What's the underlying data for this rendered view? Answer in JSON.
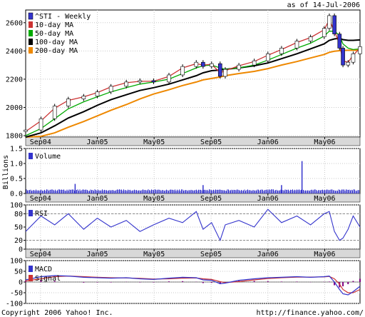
{
  "header": {
    "as_of": "as of 14-Jul-2006"
  },
  "footer": {
    "copyright": "Copyright 2006 Yahoo! Inc.",
    "url": "http://finance.yahoo.com/"
  },
  "colors": {
    "price_up": "#ffffff",
    "price_down": "#3333cc",
    "ma10": "#cc3333",
    "ma50": "#00aa00",
    "ma100": "#000000",
    "ma200": "#ee8800",
    "volume": "#3333cc",
    "rsi": "#3333cc",
    "macd_line": "#3333cc",
    "signal": "#cc3333",
    "hist": "#800080",
    "x_band": "#d8d8d8"
  },
  "chart_data": [
    {
      "type": "line",
      "title": "",
      "series_label": "^STI - Weekly",
      "ylim": [
        1790,
        2690
      ],
      "yticks": [
        1800,
        2000,
        2200,
        2400,
        2600
      ],
      "x_ticks": [
        "Sep04",
        "Jan05",
        "May05",
        "Sep05",
        "Jan06",
        "May06"
      ],
      "x_tick_positions": [
        2004.667,
        2005.0,
        2005.333,
        2005.667,
        2006.0,
        2006.333
      ],
      "xlim": [
        2004.58,
        2006.54
      ],
      "x": [
        2004.58,
        2004.67,
        2004.75,
        2004.83,
        2004.92,
        2005.0,
        2005.08,
        2005.17,
        2005.25,
        2005.33,
        2005.42,
        2005.5,
        2005.58,
        2005.62,
        2005.67,
        2005.72,
        2005.75,
        2005.83,
        2005.92,
        2006.0,
        2006.08,
        2006.17,
        2006.25,
        2006.33,
        2006.36,
        2006.39,
        2006.42,
        2006.44,
        2006.47,
        2006.5,
        2006.54
      ],
      "close": [
        1840,
        1920,
        2010,
        2060,
        2080,
        2110,
        2150,
        2180,
        2190,
        2180,
        2230,
        2290,
        2320,
        2290,
        2310,
        2220,
        2270,
        2300,
        2330,
        2380,
        2420,
        2470,
        2500,
        2560,
        2650,
        2520,
        2420,
        2300,
        2320,
        2380,
        2430
      ],
      "series": [
        {
          "name": "10-day MA",
          "values": [
            1830,
            1905,
            1995,
            2050,
            2075,
            2105,
            2145,
            2175,
            2185,
            2185,
            2220,
            2280,
            2310,
            2300,
            2305,
            2245,
            2260,
            2295,
            2325,
            2370,
            2410,
            2460,
            2495,
            2550,
            2620,
            2540,
            2450,
            2330,
            2320,
            2370,
            2420
          ]
        },
        {
          "name": "50-day MA",
          "values": [
            1800,
            1850,
            1920,
            1990,
            2040,
            2075,
            2110,
            2140,
            2165,
            2180,
            2200,
            2240,
            2280,
            2295,
            2300,
            2280,
            2270,
            2280,
            2300,
            2335,
            2375,
            2420,
            2455,
            2505,
            2540,
            2540,
            2510,
            2450,
            2420,
            2410,
            2415
          ]
        },
        {
          "name": "100-day MA",
          "values": [
            1790,
            1820,
            1870,
            1925,
            1970,
            2015,
            2055,
            2090,
            2120,
            2140,
            2165,
            2195,
            2225,
            2245,
            2260,
            2265,
            2270,
            2280,
            2295,
            2315,
            2345,
            2380,
            2415,
            2450,
            2475,
            2485,
            2490,
            2480,
            2475,
            2475,
            2478
          ]
        },
        {
          "name": "200-day MA",
          "values": [
            1790,
            1795,
            1820,
            1860,
            1900,
            1940,
            1980,
            2020,
            2060,
            2095,
            2125,
            2155,
            2180,
            2195,
            2205,
            2215,
            2225,
            2240,
            2255,
            2275,
            2300,
            2325,
            2350,
            2375,
            2390,
            2398,
            2402,
            2404,
            2405,
            2405,
            2405
          ]
        }
      ]
    },
    {
      "type": "bar",
      "title": "",
      "series_label": "Volume",
      "ylabel": "Billions",
      "ylim": [
        0,
        1.5
      ],
      "yticks": [
        0,
        0.5,
        1.0,
        1.5
      ],
      "ytick_labels": [
        "0.0",
        "0.5",
        "1.0",
        "1.5"
      ],
      "spikes": [
        {
          "x": 2004.87,
          "value": 0.32
        },
        {
          "x": 2005.62,
          "value": 0.28
        },
        {
          "x": 2006.08,
          "value": 0.28
        },
        {
          "x": 2006.2,
          "value": 1.08
        }
      ],
      "typical_value": 0.1
    },
    {
      "type": "line",
      "title": "",
      "series_label": "RSI",
      "ylim": [
        0,
        100
      ],
      "yticks": [
        0,
        20,
        50,
        80,
        100
      ],
      "guide_lines": [
        20,
        80
      ],
      "x": [
        2004.58,
        2004.67,
        2004.75,
        2004.83,
        2004.92,
        2005.0,
        2005.08,
        2005.17,
        2005.25,
        2005.33,
        2005.42,
        2005.5,
        2005.58,
        2005.62,
        2005.67,
        2005.72,
        2005.75,
        2005.83,
        2005.92,
        2006.0,
        2006.08,
        2006.17,
        2006.25,
        2006.33,
        2006.36,
        2006.39,
        2006.42,
        2006.44,
        2006.47,
        2006.5,
        2006.54
      ],
      "values": [
        40,
        75,
        55,
        80,
        45,
        70,
        50,
        65,
        40,
        55,
        70,
        60,
        85,
        45,
        60,
        20,
        55,
        65,
        50,
        90,
        60,
        75,
        55,
        80,
        85,
        40,
        20,
        25,
        45,
        75,
        50
      ]
    },
    {
      "type": "line",
      "title": "",
      "series_labels": [
        "MACD",
        "Signal"
      ],
      "ylim": [
        -100,
        100
      ],
      "yticks": [
        -100,
        -50,
        0,
        50,
        100
      ],
      "x": [
        2004.58,
        2004.67,
        2004.75,
        2004.83,
        2004.92,
        2005.0,
        2005.08,
        2005.17,
        2005.25,
        2005.33,
        2005.42,
        2005.5,
        2005.58,
        2005.62,
        2005.67,
        2005.72,
        2005.75,
        2005.83,
        2005.92,
        2006.0,
        2006.08,
        2006.17,
        2006.25,
        2006.33,
        2006.36,
        2006.39,
        2006.42,
        2006.44,
        2006.47,
        2006.5,
        2006.54
      ],
      "series": [
        {
          "name": "MACD",
          "values": [
            10,
            25,
            30,
            28,
            22,
            20,
            18,
            20,
            15,
            12,
            18,
            22,
            20,
            10,
            8,
            -8,
            -5,
            8,
            15,
            20,
            22,
            25,
            22,
            25,
            28,
            0,
            -35,
            -55,
            -60,
            -45,
            -20
          ]
        },
        {
          "name": "Signal",
          "values": [
            5,
            15,
            25,
            28,
            25,
            22,
            20,
            19,
            17,
            14,
            15,
            18,
            19,
            15,
            12,
            2,
            -3,
            2,
            10,
            16,
            20,
            23,
            23,
            24,
            26,
            15,
            -10,
            -35,
            -50,
            -50,
            -35
          ]
        }
      ]
    }
  ]
}
